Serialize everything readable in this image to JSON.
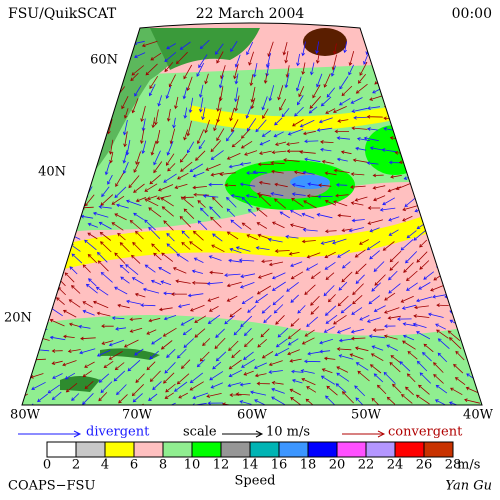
{
  "header": {
    "product": "FSU/QuikSCAT",
    "date": "22 March 2004",
    "time": "00:00"
  },
  "map": {
    "lat_labels": [
      "60N",
      "40N",
      "20N"
    ],
    "lon_labels": [
      "80W",
      "70W",
      "60W",
      "50W",
      "40W"
    ]
  },
  "legend": {
    "divergent": "divergent",
    "scale": "scale",
    "scale_value": "10 m/s",
    "convergent": "convergent"
  },
  "colorbar": {
    "ticks": [
      0,
      2,
      4,
      6,
      8,
      10,
      12,
      14,
      16,
      18,
      20,
      22,
      24,
      26,
      28
    ],
    "unit": "m/s",
    "label": "Speed",
    "colors": [
      "#ffffff",
      "#c8c8c8",
      "#ffff00",
      "#ffc0c0",
      "#90ee90",
      "#00ff00",
      "#969696",
      "#00b4b4",
      "#3c96ff",
      "#0000ff",
      "#ff50ff",
      "#b496ff",
      "#ff0000",
      "#c83200",
      "#000000"
    ]
  },
  "footer": {
    "institution": "COAPS−FSU",
    "author": "Yan Gu"
  }
}
